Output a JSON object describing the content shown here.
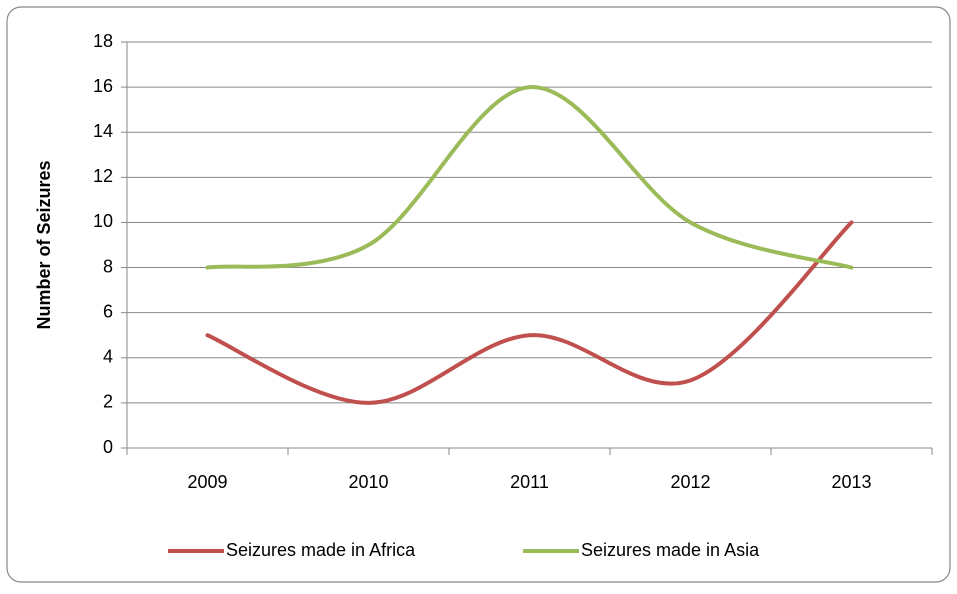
{
  "chart_data": {
    "type": "line",
    "smooth": true,
    "categories": [
      "2009",
      "2010",
      "2011",
      "2012",
      "2013"
    ],
    "series": [
      {
        "name": "Seizures made in Africa",
        "color": "#c0504d",
        "values": [
          5,
          2,
          5,
          3,
          10
        ]
      },
      {
        "name": "Seizures made in Asia",
        "color": "#9bbb59",
        "values": [
          8,
          9,
          16,
          10,
          8
        ]
      }
    ],
    "y_label": "Number of Seizures",
    "ylim": [
      0,
      18
    ],
    "yticks": [
      0,
      2,
      4,
      6,
      8,
      10,
      12,
      14,
      16,
      18
    ],
    "grid": true,
    "legend": "bottom"
  }
}
